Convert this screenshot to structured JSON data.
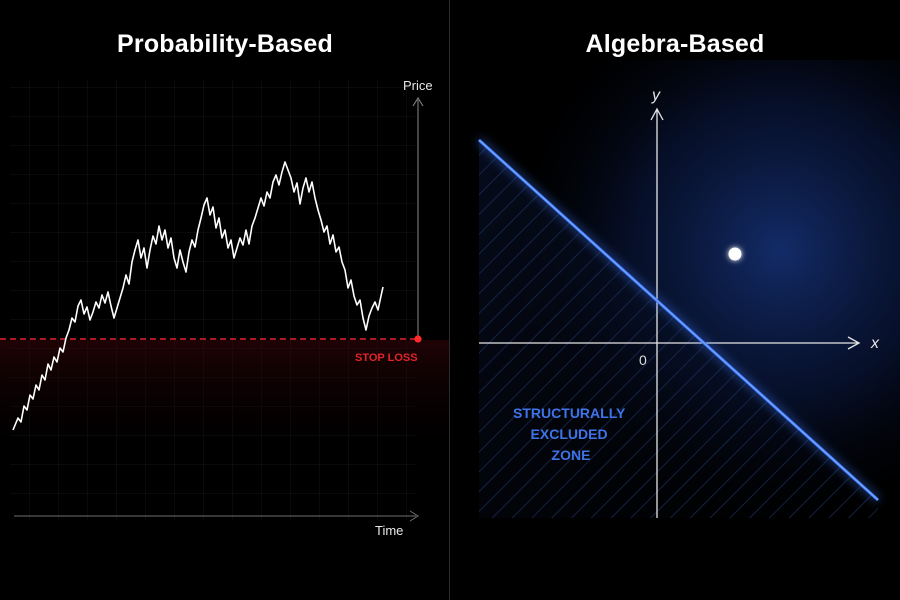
{
  "left_panel": {
    "title": "Probability-Based",
    "y_axis_label": "Price",
    "x_axis_label": "Time",
    "stop_loss_label": "STOP LOSS",
    "colors": {
      "price_line": "#ffffff",
      "stop_loss": "#e0242a",
      "axis": "#8a8a8a"
    }
  },
  "right_panel": {
    "title": "Algebra-Based",
    "y_axis_label": "y",
    "x_axis_label": "x",
    "origin_label": "0",
    "zone_label": [
      "STRUCTURALLY",
      "EXCLUDED",
      "ZONE"
    ],
    "colors": {
      "boundary_line": "#4a86ff",
      "zone_text": "#3f74e8",
      "point": "#ffffff",
      "axis": "#e6e6e6"
    }
  }
}
